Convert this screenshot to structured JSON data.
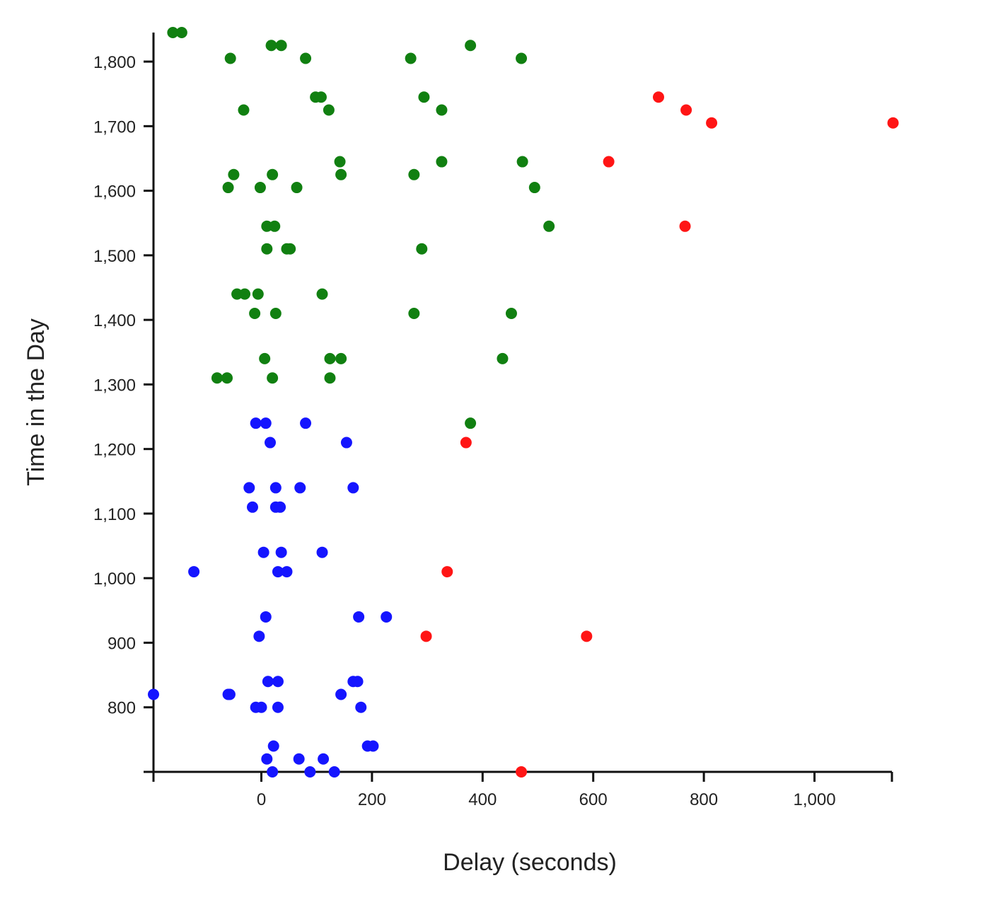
{
  "chart_data": {
    "type": "scatter",
    "title": "",
    "xlabel": "Delay (seconds)",
    "ylabel": "Time in the Day",
    "xlim": [
      -195,
      1140
    ],
    "ylim": [
      700,
      1845
    ],
    "x_ticks": [
      -195,
      0,
      200,
      400,
      600,
      800,
      1000,
      1140
    ],
    "x_tick_labels": [
      "",
      "0",
      "200",
      "400",
      "600",
      "800",
      "1,000",
      ""
    ],
    "y_ticks": [
      700,
      800,
      900,
      1000,
      1100,
      1200,
      1300,
      1400,
      1500,
      1600,
      1700,
      1800
    ],
    "y_tick_labels": [
      "",
      "800",
      "900",
      "1,000",
      "1,100",
      "1,200",
      "1,300",
      "1,400",
      "1,500",
      "1,600",
      "1,700",
      "1,800"
    ],
    "grid": false,
    "legend": "none",
    "series": [
      {
        "color": "#1515ff",
        "points": [
          [
            20,
            700
          ],
          [
            88,
            700
          ],
          [
            132,
            700
          ],
          [
            10,
            720
          ],
          [
            68,
            720
          ],
          [
            112,
            720
          ],
          [
            22,
            740
          ],
          [
            192,
            740
          ],
          [
            202,
            740
          ],
          [
            0,
            800
          ],
          [
            -10,
            800
          ],
          [
            30,
            800
          ],
          [
            180,
            800
          ],
          [
            -195,
            820
          ],
          [
            -60,
            820
          ],
          [
            -57,
            820
          ],
          [
            144,
            820
          ],
          [
            12,
            840
          ],
          [
            30,
            840
          ],
          [
            166,
            840
          ],
          [
            174,
            840
          ],
          [
            -4,
            910
          ],
          [
            8,
            940
          ],
          [
            176,
            940
          ],
          [
            226,
            940
          ],
          [
            -122,
            1010
          ],
          [
            30,
            1010
          ],
          [
            46,
            1010
          ],
          [
            4,
            1040
          ],
          [
            36,
            1040
          ],
          [
            110,
            1040
          ],
          [
            -16,
            1110
          ],
          [
            26,
            1110
          ],
          [
            34,
            1110
          ],
          [
            -22,
            1140
          ],
          [
            26,
            1140
          ],
          [
            70,
            1140
          ],
          [
            166,
            1140
          ],
          [
            16,
            1210
          ],
          [
            154,
            1210
          ],
          [
            -10,
            1240
          ],
          [
            8,
            1240
          ],
          [
            80,
            1240
          ]
        ]
      },
      {
        "color": "#118011",
        "points": [
          [
            -80,
            1310
          ],
          [
            -62,
            1310
          ],
          [
            20,
            1310
          ],
          [
            124,
            1310
          ],
          [
            6,
            1340
          ],
          [
            124,
            1340
          ],
          [
            144,
            1340
          ],
          [
            436,
            1340
          ],
          [
            -12,
            1410
          ],
          [
            26,
            1410
          ],
          [
            276,
            1410
          ],
          [
            452,
            1410
          ],
          [
            -44,
            1440
          ],
          [
            -30,
            1440
          ],
          [
            -6,
            1440
          ],
          [
            110,
            1440
          ],
          [
            10,
            1510
          ],
          [
            46,
            1510
          ],
          [
            52,
            1510
          ],
          [
            290,
            1510
          ],
          [
            10,
            1545
          ],
          [
            24,
            1545
          ],
          [
            520,
            1545
          ],
          [
            -60,
            1605
          ],
          [
            -2,
            1605
          ],
          [
            64,
            1605
          ],
          [
            494,
            1605
          ],
          [
            -50,
            1625
          ],
          [
            20,
            1625
          ],
          [
            144,
            1625
          ],
          [
            276,
            1625
          ],
          [
            142,
            1645
          ],
          [
            326,
            1645
          ],
          [
            472,
            1645
          ],
          [
            -32,
            1725
          ],
          [
            122,
            1725
          ],
          [
            326,
            1725
          ],
          [
            98,
            1745
          ],
          [
            108,
            1745
          ],
          [
            294,
            1745
          ],
          [
            -56,
            1805
          ],
          [
            80,
            1805
          ],
          [
            270,
            1805
          ],
          [
            470,
            1805
          ],
          [
            18,
            1825
          ],
          [
            36,
            1825
          ],
          [
            378,
            1825
          ],
          [
            -160,
            1845
          ],
          [
            -144,
            1845
          ],
          [
            378,
            1240
          ]
        ]
      },
      {
        "color": "#ff1515",
        "points": [
          [
            470,
            700
          ],
          [
            298,
            910
          ],
          [
            588,
            910
          ],
          [
            336,
            1010
          ],
          [
            370,
            1210
          ],
          [
            766,
            1545
          ],
          [
            628,
            1645
          ],
          [
            814,
            1705
          ],
          [
            1142,
            1705
          ],
          [
            768,
            1725
          ],
          [
            718,
            1745
          ]
        ]
      }
    ]
  }
}
